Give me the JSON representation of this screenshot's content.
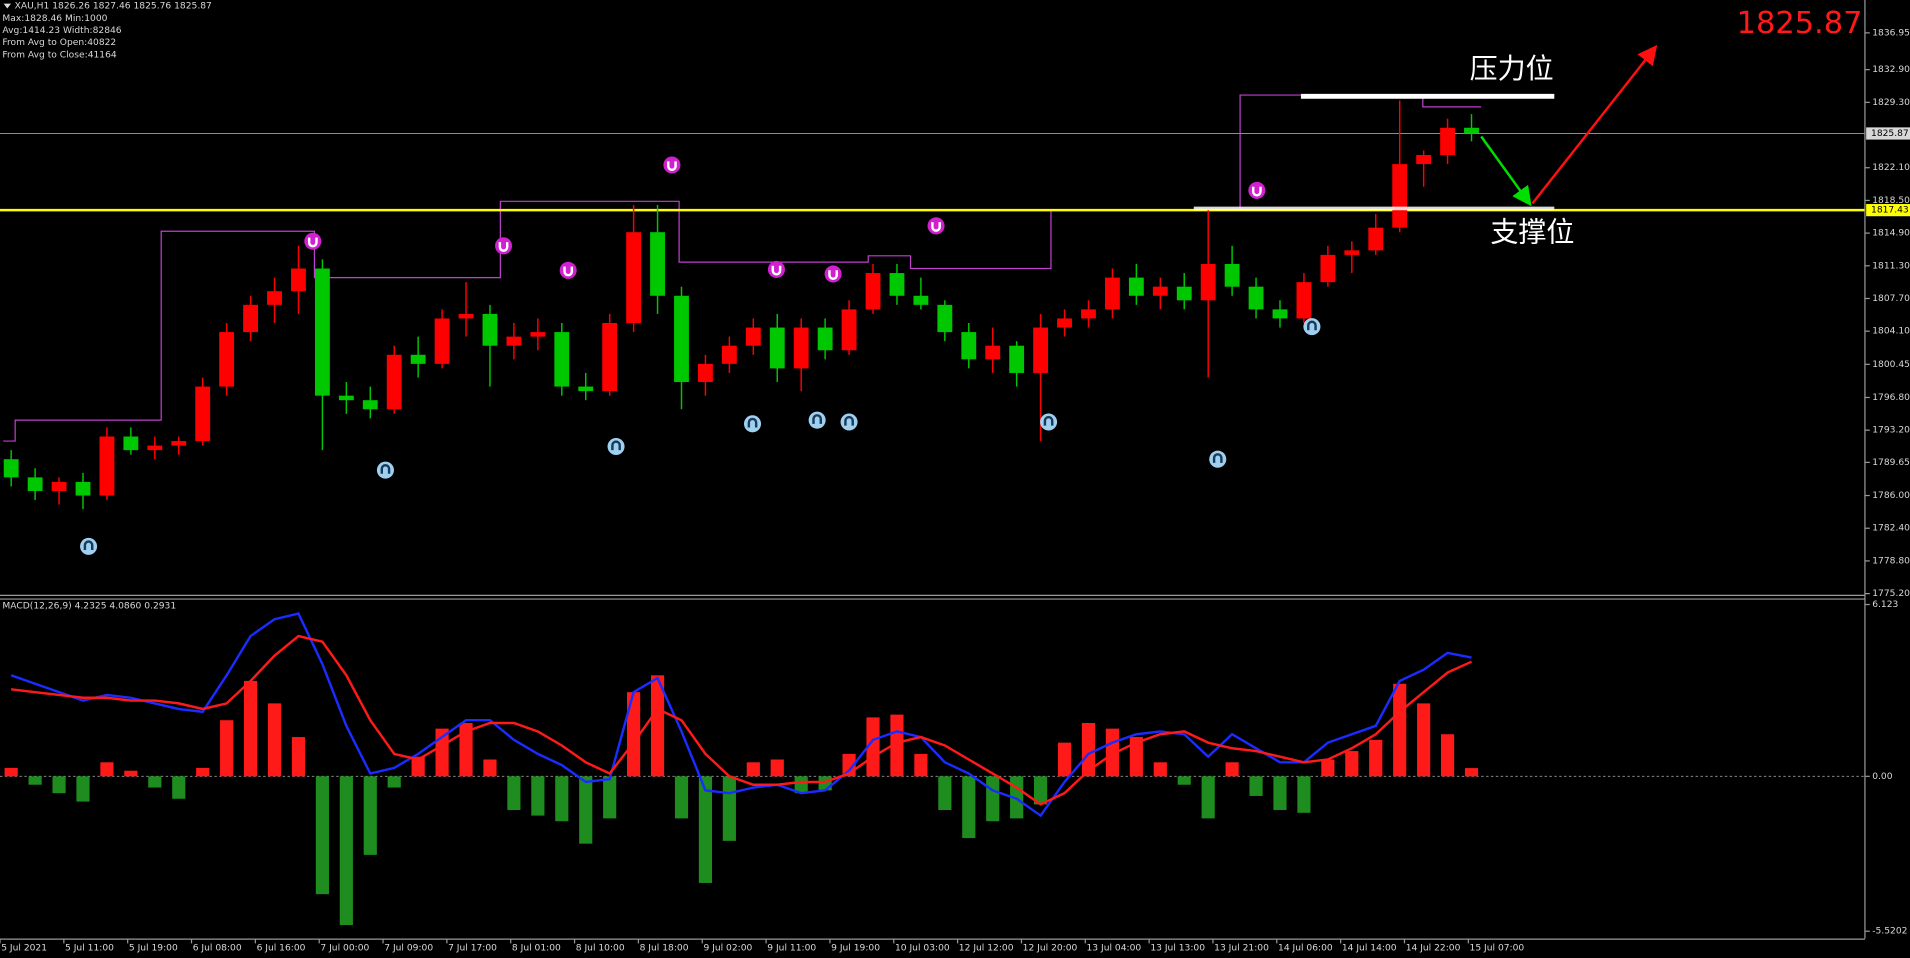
{
  "chart_data": [
    {
      "type": "candlestick",
      "title": "XAU,H1  1826.26 1827.46 1825.76 1825.87",
      "info": [
        "Max:1828.46 Min:1000",
        "Avg:1414.23 Width:82846",
        "From Avg to Open:40822",
        "From Avg to Close:41164"
      ],
      "up_color": "#ff0000",
      "down_color": "#00c800",
      "x": [
        1,
        4,
        7,
        10,
        13,
        16,
        19,
        22,
        25,
        28,
        31,
        34,
        37,
        40,
        43,
        46,
        49,
        52,
        55,
        58,
        61,
        64,
        67,
        70,
        73,
        76,
        79,
        82,
        85,
        88,
        91,
        94,
        97,
        100,
        103,
        106,
        109,
        112,
        115,
        118,
        121,
        124,
        127,
        130,
        133,
        136,
        139,
        142,
        145,
        148,
        151,
        154,
        157,
        160,
        163,
        166,
        169,
        172,
        175,
        178,
        181,
        184
      ],
      "open": [
        1790,
        1788,
        1786.5,
        1787.5,
        1786,
        1792.5,
        1791,
        1791.5,
        1792,
        1798,
        1804,
        1807,
        1808.5,
        1811,
        1797,
        1796.5,
        1795.5,
        1801.5,
        1800.5,
        1805.5,
        1806,
        1802.5,
        1803.5,
        1804,
        1798,
        1797.5,
        1805,
        1815,
        1808,
        1798.5,
        1800.5,
        1802.5,
        1804.5,
        1800,
        1804.5,
        1802,
        1806.5,
        1810.5,
        1808,
        1807,
        1804,
        1801,
        1802.5,
        1799.5,
        1804.5,
        1805.5,
        1806.5,
        1810,
        1808,
        1809,
        1807.5,
        1811.5,
        1809,
        1806.5,
        1805.5,
        1809.5,
        1812.5,
        1813,
        1815.5,
        1822.5,
        1823.5,
        1826.5
      ],
      "high": [
        1791,
        1789,
        1788,
        1788.5,
        1793.5,
        1793.5,
        1792.5,
        1792.5,
        1799,
        1805,
        1808,
        1810,
        1813.5,
        1812,
        1798.5,
        1798,
        1802.5,
        1803.5,
        1806.5,
        1809.5,
        1807,
        1805,
        1805.5,
        1805,
        1799.5,
        1806,
        1818,
        1818,
        1809,
        1801.5,
        1803.5,
        1805.5,
        1806,
        1805.5,
        1805.5,
        1807.5,
        1811.5,
        1811.5,
        1810,
        1807.5,
        1805,
        1804.5,
        1803,
        1806,
        1806.5,
        1807.5,
        1811,
        1811.5,
        1810,
        1810.5,
        1817.5,
        1813.5,
        1810,
        1807.5,
        1810.5,
        1813.5,
        1814,
        1817,
        1829.5,
        1824,
        1827.5,
        1828
      ],
      "low": [
        1787,
        1785.5,
        1785,
        1784.5,
        1785.5,
        1790.5,
        1790,
        1790.5,
        1791.5,
        1797,
        1803,
        1805,
        1806,
        1791,
        1795,
        1794.5,
        1795,
        1799,
        1800,
        1803.5,
        1798,
        1801,
        1802,
        1797,
        1796.5,
        1797,
        1804,
        1806,
        1795.5,
        1797,
        1799.5,
        1801.5,
        1798.5,
        1797.5,
        1801,
        1801.5,
        1806,
        1807,
        1806.5,
        1803,
        1800,
        1799.5,
        1798,
        1792,
        1803.5,
        1804.5,
        1805.5,
        1807,
        1806.5,
        1806.5,
        1799,
        1808,
        1805.5,
        1804.5,
        1805,
        1809,
        1810.5,
        1812.5,
        1815,
        1820,
        1822.5,
        1825
      ],
      "close": [
        1788,
        1786.5,
        1787.5,
        1786,
        1792.5,
        1791,
        1791.5,
        1792,
        1798,
        1804,
        1807,
        1808.5,
        1811,
        1797,
        1796.5,
        1795.5,
        1801.5,
        1800.5,
        1805.5,
        1806,
        1802.5,
        1803.5,
        1804,
        1798,
        1797.5,
        1805,
        1815,
        1808,
        1798.5,
        1800.5,
        1802.5,
        1804.5,
        1800,
        1804.5,
        1802,
        1806.5,
        1810.5,
        1808,
        1807,
        1804,
        1801,
        1802.5,
        1799.5,
        1804.5,
        1805.5,
        1806.5,
        1810,
        1808,
        1809,
        1807.5,
        1811.5,
        1809,
        1806.5,
        1805.5,
        1809.5,
        1812.5,
        1813,
        1815.5,
        1822.5,
        1823.5,
        1826.5,
        1825.87
      ],
      "xlim": [
        -0.4,
        233.3
      ],
      "ylim": [
        1775.07,
        1840.57
      ],
      "yticks": [
        1836.95,
        {
          "value": 1832.9,
          "label": "1832.90"
        },
        {
          "value": 1829.3,
          "label": "1829.30"
        },
        {
          "value": 1822.1,
          "label": "1822.10"
        },
        {
          "value": 1818.5,
          "label": "1818.50"
        },
        {
          "value": 1814.9,
          "label": "1814.90"
        },
        {
          "value": 1811.3,
          "label": "1811.30"
        },
        {
          "value": 1807.7,
          "label": "1807.70"
        },
        {
          "value": 1804.1,
          "label": "1804.10"
        },
        1800.45,
        {
          "value": 1796.8,
          "label": "1796.80"
        },
        {
          "value": 1793.2,
          "label": "1793.20"
        },
        1789.65,
        {
          "value": 1786,
          "label": "1786.00"
        },
        {
          "value": 1782.4,
          "label": "1782.40"
        },
        {
          "value": 1778.8,
          "label": "1778.80"
        },
        {
          "value": 1775.2,
          "label": "1775.20"
        }
      ],
      "xticks": [
        {
          "value": -0.4,
          "label": "5 Jul 2021"
        },
        {
          "value": 7.6,
          "label": "5 Jul 11:00"
        },
        {
          "value": 15.6,
          "label": "5 Jul 19:00"
        },
        {
          "value": 23.6,
          "label": "6 Jul 08:00"
        },
        {
          "value": 31.6,
          "label": "6 Jul 16:00"
        },
        {
          "value": 39.6,
          "label": "7 Jul 00:00"
        },
        {
          "value": 47.6,
          "label": "7 Jul 09:00"
        },
        {
          "value": 55.6,
          "label": "7 Jul 17:00"
        },
        {
          "value": 63.6,
          "label": "8 Jul 01:00"
        },
        {
          "value": 71.6,
          "label": "8 Jul 10:00"
        },
        {
          "value": 79.6,
          "label": "8 Jul 18:00"
        },
        {
          "value": 87.6,
          "label": "9 Jul 02:00"
        },
        {
          "value": 95.6,
          "label": "9 Jul 11:00"
        },
        {
          "value": 103.6,
          "label": "9 Jul 19:00"
        },
        {
          "value": 111.6,
          "label": "10 Jul 03:00"
        },
        {
          "value": 119.6,
          "label": "12 Jul 12:00"
        },
        {
          "value": 127.6,
          "label": "12 Jul 20:00"
        },
        {
          "value": 135.6,
          "label": "13 Jul 04:00"
        },
        {
          "value": 143.6,
          "label": "13 Jul 13:00"
        },
        {
          "value": 151.6,
          "label": "13 Jul 21:00"
        },
        {
          "value": 159.6,
          "label": "14 Jul 06:00"
        },
        {
          "value": 167.6,
          "label": "14 Jul 14:00"
        },
        {
          "value": 175.6,
          "label": "14 Jul 22:00"
        },
        {
          "value": 183.6,
          "label": "15 Jul 07:00"
        }
      ],
      "current_price": 1825.87,
      "support": {
        "value": 1817.43,
        "color": "#ffff00"
      },
      "step_line": {
        "color": "#c040d0",
        "x": [
          0,
          1.5,
          19.8,
          39,
          62.3,
          84.7,
          108.4,
          113.7,
          131.3,
          155,
          177.9,
          185.2
        ],
        "values": [
          1792,
          1794.3,
          1815.1,
          1810,
          1818.4,
          1811.7,
          1812.4,
          1811,
          1817.4,
          1830.1,
          1828.8,
          1828.8
        ]
      },
      "fractal_highs": {
        "color": "#d020d0",
        "x": [
          38.8,
          62.7,
          70.8,
          83.8,
          96.9,
          104,
          116.9,
          157.1
        ],
        "values": [
          1814,
          1813.5,
          1810.8,
          1822.4,
          1810.9,
          1810.4,
          1815.7,
          1819.6
        ]
      },
      "fractal_lows": {
        "color": "#9fd0f0",
        "x": [
          10.7,
          47.9,
          76.8,
          93.9,
          102,
          106,
          131,
          152.2,
          164
        ],
        "values": [
          1780.4,
          1788.8,
          1791.4,
          1793.9,
          1794.3,
          1794.1,
          1794.1,
          1790,
          1804.6
        ]
      },
      "annotations": [
        "压力位",
        "支撑位"
      ]
    },
    {
      "type": "macd",
      "title": "MACD(12,26,9) 4.2325 4.0860 0.2931",
      "x": [
        1,
        4,
        7,
        10,
        13,
        16,
        19,
        22,
        25,
        28,
        31,
        34,
        37,
        40,
        43,
        46,
        49,
        52,
        55,
        58,
        61,
        64,
        67,
        70,
        73,
        76,
        79,
        82,
        85,
        88,
        91,
        94,
        97,
        100,
        103,
        106,
        109,
        112,
        115,
        118,
        121,
        124,
        127,
        130,
        133,
        136,
        139,
        142,
        145,
        148,
        151,
        154,
        157,
        160,
        163,
        166,
        169,
        172,
        175,
        178,
        181,
        184
      ],
      "histogram": {
        "up_color": "#ff1a1a",
        "down_color": "#1e8c1e",
        "values": [
          0.3,
          -0.3,
          -0.6,
          -0.9,
          0.5,
          0.2,
          -0.4,
          -0.8,
          0.3,
          2,
          3.4,
          2.6,
          1.4,
          -4.2,
          -5.3,
          -2.8,
          -0.4,
          0.7,
          1.7,
          1.9,
          0.6,
          -1.2,
          -1.4,
          -1.6,
          -2.4,
          -1.5,
          3,
          3.6,
          -1.5,
          -3.8,
          -2.3,
          0.5,
          0.6,
          -0.6,
          -0.5,
          0.8,
          2.1,
          2.2,
          0.8,
          -1.2,
          -2.2,
          -1.6,
          -1.5,
          -1,
          1.2,
          1.9,
          1.7,
          1.4,
          0.5,
          -0.3,
          -1.5,
          0.5,
          -0.7,
          -1.2,
          -1.3,
          0.6,
          0.9,
          1.3,
          3.3,
          2.6,
          1.5,
          0.2931
        ]
      },
      "lines": [
        {
          "color": "#1a2cff",
          "values": [
            3.6,
            3.3,
            3,
            2.7,
            2.9,
            2.8,
            2.6,
            2.4,
            2.3,
            3.6,
            5,
            5.6,
            5.8,
            4,
            1.8,
            0.1,
            0.3,
            0.8,
            1.4,
            2,
            2,
            1.3,
            0.8,
            0.4,
            -0.2,
            -0.1,
            3,
            3.5,
            1.6,
            -0.5,
            -0.6,
            -0.4,
            -0.3,
            -0.6,
            -0.5,
            0.2,
            1.3,
            1.6,
            1.4,
            0.5,
            0.1,
            -0.5,
            -0.8,
            -1.4,
            -0.2,
            0.8,
            1.2,
            1.5,
            1.6,
            1.5,
            0.7,
            1.5,
            1,
            0.5,
            0.5,
            1.2,
            1.5,
            1.8,
            3.4,
            3.8,
            4.4,
            4.2325
          ]
        },
        {
          "color": "#ff1a1a",
          "values": [
            3.1,
            3,
            2.9,
            2.8,
            2.8,
            2.7,
            2.7,
            2.6,
            2.4,
            2.6,
            3.4,
            4.3,
            5,
            4.8,
            3.6,
            2,
            0.8,
            0.6,
            1.1,
            1.6,
            1.9,
            1.9,
            1.6,
            1.1,
            0.5,
            0.1,
            1.2,
            2.4,
            2,
            0.8,
            0,
            -0.3,
            -0.3,
            -0.2,
            -0.2,
            0.1,
            0.7,
            1.2,
            1.4,
            1.1,
            0.6,
            0.1,
            -0.4,
            -1,
            -0.6,
            0.2,
            0.8,
            1.2,
            1.5,
            1.6,
            1.2,
            1,
            0.9,
            0.7,
            0.5,
            0.6,
            1,
            1.5,
            2.3,
            3,
            3.7,
            4.086
          ]
        }
      ],
      "xlim": [
        -0.4,
        233.3
      ],
      "ylim": [
        -5.78,
        6.34
      ],
      "yticks": [
        6.123,
        {
          "value": 0,
          "label": "0.00"
        },
        -5.5202
      ]
    }
  ]
}
